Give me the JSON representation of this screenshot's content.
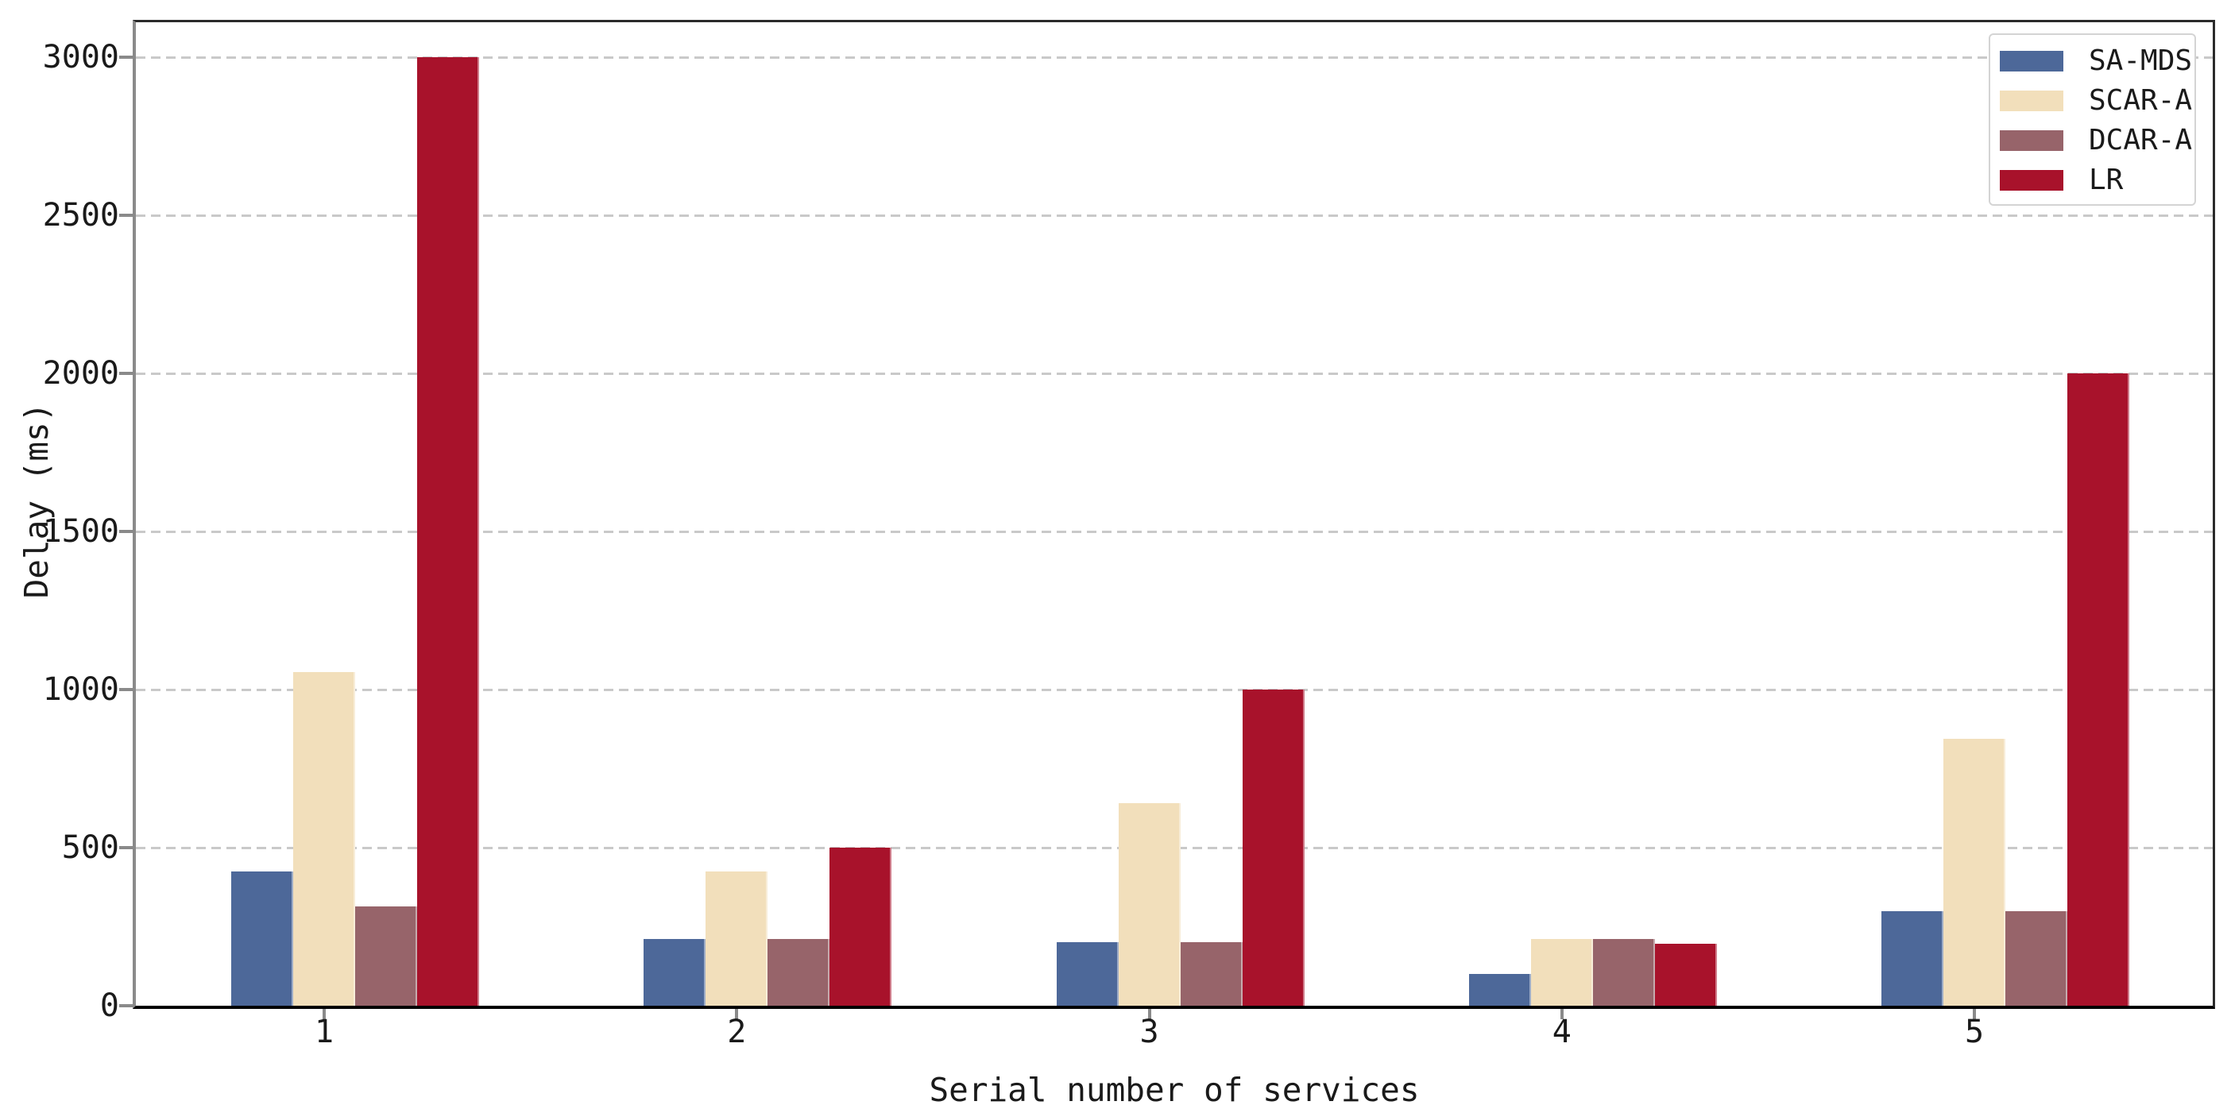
{
  "chart_data": {
    "type": "bar",
    "title": "",
    "xlabel": "Serial number of services",
    "ylabel": "Delay (ms)",
    "categories": [
      "1",
      "2",
      "3",
      "4",
      "5"
    ],
    "series": [
      {
        "name": "SA-MDS",
        "color": "#4d6899",
        "values": [
          425,
          210,
          200,
          100,
          300
        ]
      },
      {
        "name": "SCAR-A",
        "color": "#f2dfbb",
        "values": [
          1055,
          425,
          640,
          210,
          845
        ]
      },
      {
        "name": "DCAR-A",
        "color": "#97646a",
        "values": [
          315,
          210,
          200,
          210,
          300
        ]
      },
      {
        "name": "LR",
        "color": "#a8122b",
        "values": [
          3000,
          500,
          1000,
          195,
          2000
        ]
      }
    ],
    "ylim": [
      0,
      3110
    ],
    "yticks": [
      0,
      500,
      1000,
      1500,
      2000,
      2500,
      3000
    ],
    "grid": {
      "axis": "y",
      "style": "dashed",
      "color": "#c9c9c9"
    },
    "legend": {
      "position": "top-right"
    },
    "axis_colors": {
      "left_spine": "#8a8a8a",
      "bottom_spine": "#000000",
      "frame": "#2b2b2b",
      "tick": "#8a8a8a"
    }
  }
}
